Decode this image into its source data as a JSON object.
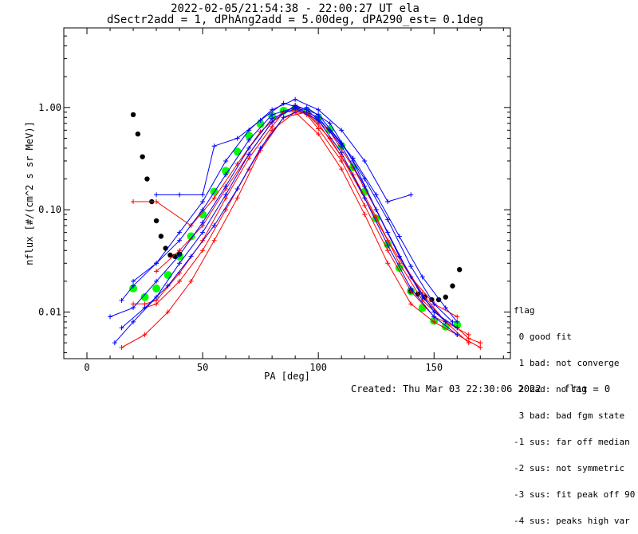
{
  "chart_data": {
    "type": "scatter",
    "title": "2022-02-05/21:54:38 - 22:00:27 UT ela",
    "subtitle": "dSectr2add = 1, dPhAng2add = 5.00deg, dPA290_est=   0.1deg",
    "xlabel": "PA [deg]",
    "ylabel": "nflux [#/(cm^2 s sr MeV)]",
    "xlim": [
      -10,
      183
    ],
    "ylim": [
      0.0035,
      6.0
    ],
    "yscale": "log",
    "x_ticks": [
      "0",
      "50",
      "100",
      "150"
    ],
    "y_ticks": [
      "0.01",
      "0.10",
      "1.00"
    ],
    "colors": {
      "red_traces": "#ff0000",
      "blue_traces": "#0000ff",
      "green_fit": "#00ff00",
      "black_curve": "#000000"
    },
    "series": [
      {
        "color": "#00ff00",
        "x": [
          20,
          25,
          30,
          35,
          40,
          45,
          50,
          55,
          60,
          65,
          70,
          75,
          80,
          85,
          90,
          95,
          100,
          105,
          110,
          115,
          120,
          125,
          130,
          135,
          140,
          145,
          150,
          155,
          160
        ],
        "y": [
          0.017,
          0.014,
          0.017,
          0.023,
          0.035,
          0.055,
          0.09,
          0.15,
          0.24,
          0.37,
          0.53,
          0.69,
          0.83,
          0.93,
          0.97,
          0.92,
          0.8,
          0.61,
          0.42,
          0.26,
          0.15,
          0.082,
          0.046,
          0.027,
          0.016,
          0.011,
          0.0082,
          0.0072,
          0.0075
        ]
      },
      {
        "color": "#000000",
        "x": [
          20,
          22,
          24,
          26,
          28,
          30,
          32,
          34,
          36,
          38,
          40
        ],
        "y": [
          0.85,
          0.55,
          0.33,
          0.2,
          0.12,
          0.078,
          0.055,
          0.042,
          0.036,
          0.035,
          0.037
        ]
      },
      {
        "color": "#000000",
        "x": [
          140,
          143,
          146,
          149,
          152,
          155,
          158,
          161
        ],
        "y": [
          0.016,
          0.015,
          0.014,
          0.0132,
          0.0132,
          0.014,
          0.018,
          0.026
        ]
      },
      {
        "color": "#ff0000",
        "x": [
          20,
          25,
          30,
          40,
          50,
          60,
          70,
          80,
          85,
          90,
          95,
          100,
          110,
          120,
          130,
          140,
          150,
          160,
          165,
          170
        ],
        "y": [
          0.012,
          0.012,
          0.013,
          0.024,
          0.05,
          0.13,
          0.32,
          0.65,
          0.9,
          0.95,
          0.85,
          0.62,
          0.3,
          0.11,
          0.04,
          0.016,
          0.009,
          0.007,
          0.0055,
          0.005
        ]
      },
      {
        "color": "#ff0000",
        "x": [
          25,
          30,
          40,
          50,
          60,
          70,
          80,
          90,
          100,
          110,
          120,
          130,
          140,
          150,
          160,
          170
        ],
        "y": [
          0.011,
          0.012,
          0.02,
          0.04,
          0.1,
          0.25,
          0.6,
          0.9,
          0.55,
          0.25,
          0.09,
          0.03,
          0.012,
          0.008,
          0.006,
          0.0045
        ]
      },
      {
        "color": "#ff0000",
        "x": [
          20,
          30,
          45,
          55,
          65,
          75,
          85,
          95,
          105,
          115,
          125,
          135,
          145,
          155,
          165
        ],
        "y": [
          0.12,
          0.12,
          0.07,
          0.13,
          0.28,
          0.58,
          0.92,
          0.88,
          0.5,
          0.22,
          0.085,
          0.03,
          0.013,
          0.008,
          0.006
        ]
      },
      {
        "color": "#ff0000",
        "x": [
          30,
          40,
          50,
          60,
          70,
          80,
          90,
          100,
          110,
          120,
          130,
          140,
          150,
          160
        ],
        "y": [
          0.025,
          0.04,
          0.07,
          0.16,
          0.35,
          0.72,
          1.05,
          0.7,
          0.33,
          0.13,
          0.05,
          0.022,
          0.012,
          0.009
        ]
      },
      {
        "color": "#ff0000",
        "x": [
          15,
          25,
          35,
          45,
          55,
          65,
          75,
          85,
          95,
          105,
          115,
          125,
          135,
          145,
          155,
          165
        ],
        "y": [
          0.0045,
          0.006,
          0.01,
          0.02,
          0.05,
          0.13,
          0.38,
          0.8,
          0.9,
          0.58,
          0.26,
          0.1,
          0.035,
          0.015,
          0.008,
          0.005
        ]
      },
      {
        "color": "#0000ff",
        "x": [
          15,
          20,
          30,
          40,
          50,
          60,
          70,
          80,
          90,
          100,
          110,
          120,
          130,
          140,
          150,
          160
        ],
        "y": [
          0.013,
          0.018,
          0.03,
          0.05,
          0.1,
          0.22,
          0.48,
          0.85,
          1.0,
          0.8,
          0.42,
          0.17,
          0.06,
          0.022,
          0.01,
          0.007
        ]
      },
      {
        "color": "#0000ff",
        "x": [
          10,
          20,
          30,
          40,
          50,
          60,
          70,
          80,
          90,
          100,
          110,
          120,
          130,
          140,
          150,
          160
        ],
        "y": [
          0.009,
          0.011,
          0.02,
          0.036,
          0.075,
          0.17,
          0.4,
          0.78,
          0.98,
          0.75,
          0.36,
          0.13,
          0.045,
          0.017,
          0.009,
          0.006
        ]
      },
      {
        "color": "#0000ff",
        "x": [
          30,
          40,
          50,
          55,
          65,
          75,
          85,
          95,
          105,
          115,
          125,
          135,
          145,
          155,
          160
        ],
        "y": [
          0.14,
          0.14,
          0.14,
          0.42,
          0.5,
          0.75,
          1.1,
          0.95,
          0.6,
          0.32,
          0.14,
          0.055,
          0.022,
          0.011,
          0.008
        ]
      },
      {
        "color": "#0000ff",
        "x": [
          12,
          20,
          30,
          40,
          50,
          60,
          70,
          80,
          90,
          100,
          110,
          120,
          130,
          140,
          150,
          158
        ],
        "y": [
          0.005,
          0.008,
          0.014,
          0.03,
          0.06,
          0.14,
          0.35,
          0.72,
          1.05,
          0.85,
          0.45,
          0.2,
          0.08,
          0.028,
          0.012,
          0.008
        ]
      },
      {
        "color": "#0000ff",
        "x": [
          20,
          30,
          40,
          50,
          60,
          70,
          80,
          90,
          100,
          110,
          120,
          130,
          140
        ],
        "y": [
          0.02,
          0.03,
          0.06,
          0.12,
          0.3,
          0.6,
          0.95,
          1.2,
          0.95,
          0.6,
          0.3,
          0.12,
          0.14
        ]
      },
      {
        "color": "#0000ff",
        "x": [
          15,
          25,
          35,
          45,
          55,
          65,
          75,
          85,
          95,
          105,
          115,
          125,
          135,
          145,
          155
        ],
        "y": [
          0.007,
          0.011,
          0.018,
          0.035,
          0.07,
          0.16,
          0.4,
          0.8,
          1.0,
          0.7,
          0.3,
          0.1,
          0.035,
          0.014,
          0.008
        ]
      }
    ]
  },
  "legend": {
    "title": "flag",
    "entries": [
      " 0 good fit",
      " 1 bad: not converge",
      " 2 bad: no fit",
      " 3 bad: bad fgm state",
      "-1 sus: far off median",
      "-2 sus: not symmetric",
      "-3 sus: fit peak off 90",
      "-4 sus: peaks high var"
    ]
  },
  "footer": {
    "created": "Created: Thu Mar 03 22:30:06 2022",
    "flag": "flag = 0"
  }
}
